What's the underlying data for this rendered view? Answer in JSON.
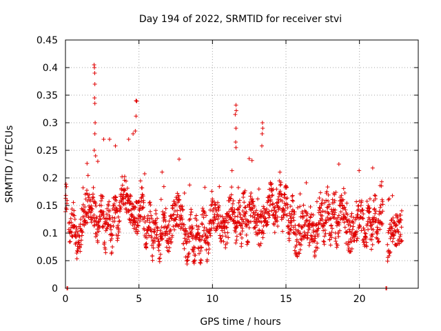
{
  "chart_data": {
    "type": "scatter",
    "title": "Day 194 of 2022, SRMTID for receiver stvi",
    "xlabel": "GPS time / hours",
    "ylabel": "SRMTID / TECUs",
    "xlim": [
      0,
      24
    ],
    "ylim": [
      0,
      0.45
    ],
    "x_ticks": [
      0,
      5,
      10,
      15,
      20
    ],
    "x_tick_labels": [
      "0",
      "5",
      "10",
      "15",
      "20"
    ],
    "y_ticks": [
      0,
      0.05,
      0.1,
      0.15,
      0.2,
      0.25,
      0.3,
      0.35,
      0.4,
      0.45
    ],
    "y_tick_labels": [
      "0",
      "0.05",
      "0.1",
      "0.15",
      "0.2",
      "0.25",
      "0.3",
      "0.35",
      "0.4",
      "0.45"
    ],
    "grid": true,
    "marker": "+",
    "marker_color": "#e00000",
    "series": [
      {
        "name": "SRMTID",
        "trend_knots": [
          [
            0,
            0.15
          ],
          [
            0.3,
            0.12
          ],
          [
            0.7,
            0.09
          ],
          [
            1.0,
            0.11
          ],
          [
            1.3,
            0.13
          ],
          [
            1.6,
            0.12
          ],
          [
            2.0,
            0.14
          ],
          [
            2.5,
            0.12
          ],
          [
            3.0,
            0.11
          ],
          [
            3.3,
            0.12
          ],
          [
            3.7,
            0.15
          ],
          [
            4.2,
            0.16
          ],
          [
            4.8,
            0.15
          ],
          [
            5.2,
            0.13
          ],
          [
            5.6,
            0.11
          ],
          [
            6.0,
            0.1
          ],
          [
            6.5,
            0.09
          ],
          [
            7.0,
            0.12
          ],
          [
            7.5,
            0.13
          ],
          [
            8.0,
            0.1
          ],
          [
            8.5,
            0.09
          ],
          [
            9.0,
            0.09
          ],
          [
            9.5,
            0.1
          ],
          [
            10.0,
            0.11
          ],
          [
            10.5,
            0.12
          ],
          [
            11.0,
            0.13
          ],
          [
            11.5,
            0.13
          ],
          [
            12.0,
            0.12
          ],
          [
            12.5,
            0.13
          ],
          [
            13.0,
            0.13
          ],
          [
            13.5,
            0.13
          ],
          [
            14.0,
            0.14
          ],
          [
            14.5,
            0.15
          ],
          [
            15.0,
            0.15
          ],
          [
            15.5,
            0.11
          ],
          [
            16.0,
            0.09
          ],
          [
            16.5,
            0.09
          ],
          [
            17.0,
            0.11
          ],
          [
            17.5,
            0.13
          ],
          [
            18.0,
            0.13
          ],
          [
            18.5,
            0.12
          ],
          [
            19.0,
            0.12
          ],
          [
            19.5,
            0.12
          ],
          [
            20.0,
            0.11
          ],
          [
            20.5,
            0.11
          ],
          [
            21.0,
            0.12
          ],
          [
            21.5,
            0.12
          ],
          [
            22.0,
            0.09
          ],
          [
            22.3,
            0.08
          ],
          [
            22.6,
            0.08
          ],
          [
            23.0,
            0.12
          ]
        ],
        "spikes": [
          [
            1.95,
            0.405
          ],
          [
            1.97,
            0.4
          ],
          [
            1.99,
            0.39
          ],
          [
            2.0,
            0.37
          ],
          [
            1.98,
            0.345
          ],
          [
            2.0,
            0.335
          ],
          [
            2.02,
            0.3
          ],
          [
            2.0,
            0.28
          ],
          [
            1.96,
            0.25
          ],
          [
            2.05,
            0.24
          ],
          [
            2.2,
            0.23
          ],
          [
            4.8,
            0.34
          ],
          [
            4.85,
            0.339
          ],
          [
            4.8,
            0.312
          ],
          [
            4.75,
            0.285
          ],
          [
            4.3,
            0.27
          ],
          [
            4.6,
            0.28
          ],
          [
            11.6,
            0.332
          ],
          [
            11.62,
            0.322
          ],
          [
            11.55,
            0.315
          ],
          [
            11.6,
            0.29
          ],
          [
            11.58,
            0.265
          ],
          [
            11.6,
            0.255
          ],
          [
            13.4,
            0.3
          ],
          [
            13.42,
            0.29
          ],
          [
            13.38,
            0.28
          ],
          [
            13.36,
            0.258
          ],
          [
            12.5,
            0.235
          ],
          [
            18.6,
            0.225
          ],
          [
            20.9,
            0.218
          ],
          [
            3.4,
            0.258
          ],
          [
            2.6,
            0.27
          ],
          [
            3.0,
            0.27
          ],
          [
            0.1,
            0.0
          ],
          [
            0.15,
            0.0
          ],
          [
            21.8,
            0.0
          ],
          [
            21.85,
            0.0
          ]
        ],
        "gaps_hours": [
          [
            0.12,
            0.22
          ],
          [
            21.6,
            21.9
          ],
          [
            22.9,
            24.0
          ]
        ],
        "samples": 1700,
        "seed": 194
      }
    ]
  }
}
